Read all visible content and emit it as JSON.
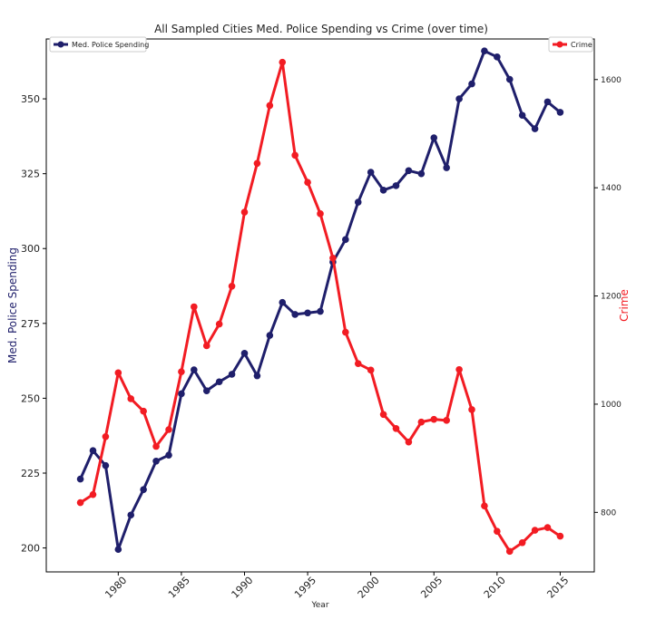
{
  "chart_data": {
    "type": "line",
    "title": "All Sampled Cities Med. Police Spending vs Crime (over time)",
    "xlabel": "Year",
    "ylabel_left": "Med. Police Spending",
    "ylabel_right": "Crime",
    "xlim": [
      1974.3,
      2017.7
    ],
    "ylim_left": [
      192,
      370
    ],
    "ylim_right": [
      690,
      1675
    ],
    "x_ticks": [
      1980,
      1985,
      1990,
      1995,
      2000,
      2005,
      2010,
      2015
    ],
    "y_left_ticks": [
      200,
      225,
      250,
      275,
      300,
      325,
      350
    ],
    "y_right_ticks": [
      800,
      1000,
      1200,
      1400,
      1600
    ],
    "legend_left_position": "top-left",
    "legend_right_position": "top-right",
    "grid": false,
    "x": [
      1977,
      1978,
      1979,
      1980,
      1981,
      1982,
      1983,
      1984,
      1985,
      1986,
      1987,
      1988,
      1989,
      1990,
      1991,
      1992,
      1993,
      1994,
      1995,
      1996,
      1997,
      1998,
      1999,
      2000,
      2001,
      2002,
      2003,
      2004,
      2005,
      2006,
      2007,
      2008,
      2009,
      2010,
      2011,
      2012,
      2013,
      2014,
      2015
    ],
    "series": [
      {
        "name": "Med. Police Spending",
        "axis": "left",
        "color": "#1f1f6b",
        "values": [
          223,
          232.5,
          227.5,
          199.5,
          211,
          219.5,
          229,
          231,
          251.5,
          259.5,
          252.5,
          255.5,
          258,
          265,
          257.5,
          271,
          282,
          278,
          278.5,
          279,
          295.5,
          303,
          315.5,
          325.5,
          319.5,
          321,
          326,
          325,
          337,
          327,
          350,
          355,
          366,
          364,
          356.5,
          344.5,
          340,
          349,
          345.5
        ]
      },
      {
        "name": "Crime",
        "axis": "right",
        "color": "#f21c23",
        "values": [
          818,
          833,
          940,
          1058,
          1010,
          987,
          922,
          953,
          1060,
          1180,
          1108,
          1148,
          1218,
          1355,
          1445,
          1552,
          1632,
          1460,
          1410,
          1352,
          1270,
          1133,
          1075,
          1063,
          981,
          955,
          930,
          967,
          972,
          970,
          1064,
          990,
          812,
          765,
          728,
          744,
          767,
          772,
          756
        ]
      }
    ]
  }
}
